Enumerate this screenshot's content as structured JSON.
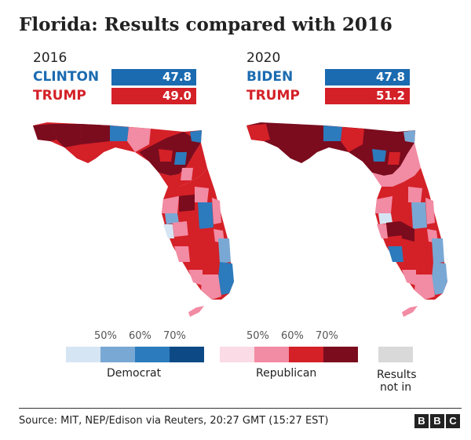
{
  "title": "Florida: Results compared with 2016",
  "colors": {
    "democrat_bar": "#1b6bb0",
    "republican_bar": "#d42027",
    "dem_scale": [
      "#d6e5f3",
      "#7aa8d4",
      "#2b7bbd",
      "#0d4a85"
    ],
    "rep_scale": [
      "#fbdbe5",
      "#f28ba4",
      "#d42027",
      "#7a0c1e"
    ],
    "results_not_in": "#d9d9d9"
  },
  "panels": [
    {
      "year": "2016",
      "candidates": [
        {
          "name": "CLINTON",
          "value": "47.8",
          "party": "democrat"
        },
        {
          "name": "TRUMP",
          "value": "49.0",
          "party": "republican"
        }
      ]
    },
    {
      "year": "2020",
      "candidates": [
        {
          "name": "BIDEN",
          "value": "47.8",
          "party": "democrat"
        },
        {
          "name": "TRUMP",
          "value": "51.2",
          "party": "republican"
        }
      ]
    }
  ],
  "legend": {
    "dem_ticks": [
      "50%",
      "60%",
      "70%"
    ],
    "rep_ticks": [
      "50%",
      "60%",
      "70%"
    ],
    "democrat_label": "Democrat",
    "republican_label": "Republican",
    "results_not_in_label_1": "Results",
    "results_not_in_label_2": "not in"
  },
  "source": "Source: MIT, NEP/Edison via Reuters, 20:27 GMT (15:27 EST)",
  "logo_letters": [
    "B",
    "B",
    "C"
  ]
}
